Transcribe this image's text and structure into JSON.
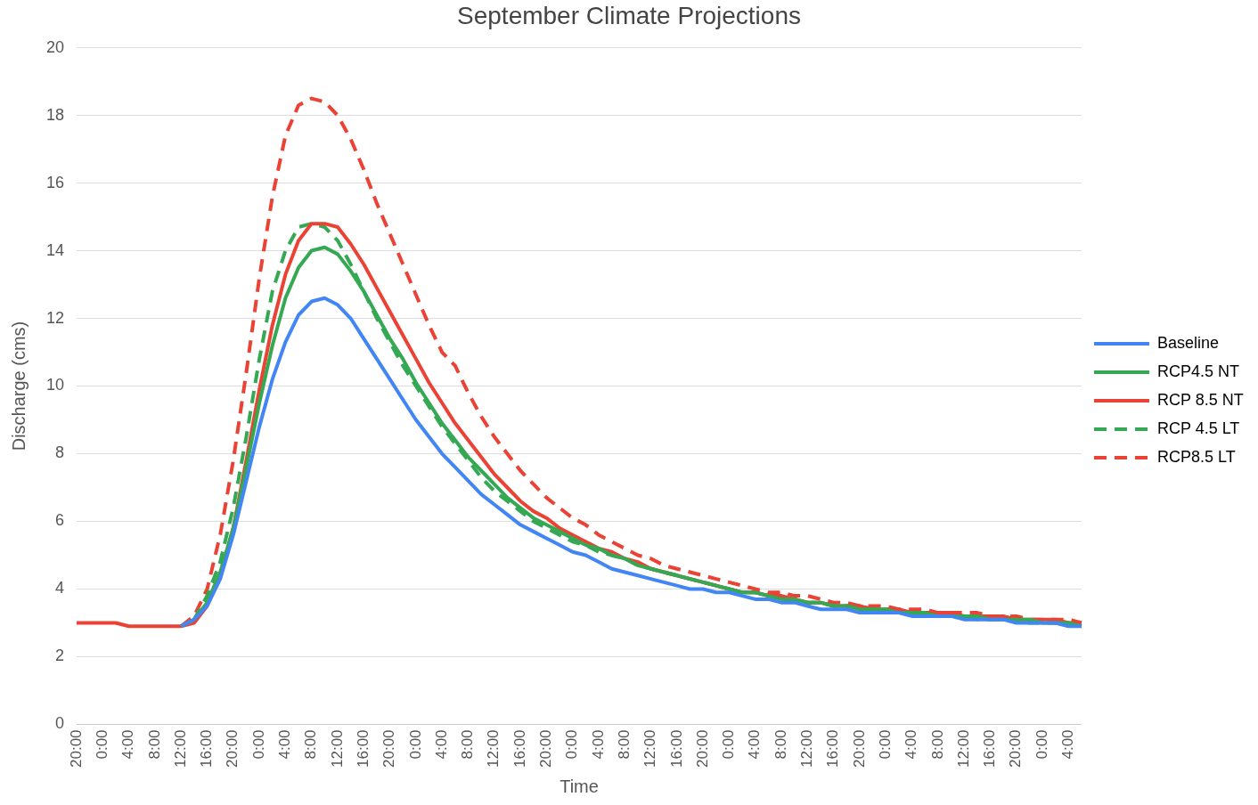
{
  "chart_data": {
    "type": "line",
    "title": "September Climate Projections",
    "xlabel": "Time",
    "ylabel": "Discharge (cms)",
    "categories": [
      "20:00",
      null,
      "0:00",
      null,
      "4:00",
      null,
      "8:00",
      null,
      "12:00",
      null,
      "16:00",
      null,
      "20:00",
      null,
      "0:00",
      null,
      "4:00",
      null,
      "8:00",
      null,
      "12:00",
      null,
      "16:00",
      null,
      "20:00",
      null,
      "0:00",
      null,
      "4:00",
      null,
      "8:00",
      null,
      "12:00",
      null,
      "16:00",
      null,
      "20:00",
      null,
      "0:00",
      null,
      "4:00",
      null,
      "8:00",
      null,
      "12:00",
      null,
      "16:00",
      null,
      "20:00",
      null,
      "0:00",
      null,
      "4:00",
      null,
      "8:00",
      null,
      "12:00",
      null,
      "16:00",
      null,
      "20:00",
      null,
      "0:00",
      null,
      "4:00",
      null,
      "8:00",
      null,
      "12:00",
      null,
      "16:00",
      null,
      "20:00",
      null,
      "0:00",
      null,
      "4:00",
      null
    ],
    "series": [
      {
        "name": "Baseline",
        "color": "#4285f4",
        "line_style": "solid",
        "values": [
          null,
          null,
          null,
          null,
          null,
          null,
          null,
          null,
          2.9,
          3.1,
          3.5,
          4.3,
          5.6,
          7.2,
          8.8,
          10.2,
          11.3,
          12.1,
          12.5,
          12.6,
          12.4,
          12.0,
          11.4,
          10.8,
          10.2,
          9.6,
          9.0,
          8.5,
          8.0,
          7.6,
          7.2,
          6.8,
          6.5,
          6.2,
          5.9,
          5.7,
          5.5,
          5.3,
          5.1,
          5.0,
          4.8,
          4.6,
          4.5,
          4.4,
          4.3,
          4.2,
          4.1,
          4.0,
          4.0,
          3.9,
          3.9,
          3.8,
          3.7,
          3.7,
          3.6,
          3.6,
          3.5,
          3.4,
          3.4,
          3.4,
          3.3,
          3.3,
          3.3,
          3.3,
          3.2,
          3.2,
          3.2,
          3.2,
          3.1,
          3.1,
          3.1,
          3.1,
          3.0,
          3.0,
          3.0,
          3.0,
          2.9,
          2.9
        ]
      },
      {
        "name": "RCP4.5 NT",
        "color": "#34a853",
        "line_style": "solid",
        "values": [
          null,
          null,
          null,
          null,
          null,
          null,
          null,
          null,
          2.9,
          3.1,
          3.6,
          4.5,
          5.8,
          7.6,
          9.5,
          11.2,
          12.6,
          13.5,
          14.0,
          14.1,
          13.9,
          13.4,
          12.8,
          12.1,
          11.4,
          10.8,
          10.1,
          9.5,
          8.9,
          8.4,
          7.9,
          7.5,
          7.1,
          6.7,
          6.4,
          6.1,
          5.9,
          5.7,
          5.5,
          5.3,
          5.2,
          5.0,
          4.9,
          4.7,
          4.6,
          4.5,
          4.4,
          4.3,
          4.2,
          4.1,
          4.0,
          3.9,
          3.9,
          3.8,
          3.7,
          3.7,
          3.6,
          3.6,
          3.5,
          3.5,
          3.4,
          3.4,
          3.4,
          3.3,
          3.3,
          3.3,
          3.2,
          3.2,
          3.2,
          3.2,
          3.1,
          3.1,
          3.1,
          3.1,
          3.0,
          3.0,
          3.0,
          2.9
        ]
      },
      {
        "name": "RCP 8.5 NT",
        "color": "#ea4335",
        "line_style": "solid",
        "values": [
          3.0,
          3.0,
          3.0,
          3.0,
          2.9,
          2.9,
          2.9,
          2.9,
          2.9,
          3.0,
          3.5,
          4.4,
          5.8,
          7.8,
          9.9,
          11.8,
          13.3,
          14.3,
          14.8,
          14.8,
          14.7,
          14.2,
          13.6,
          12.9,
          12.2,
          11.5,
          10.8,
          10.1,
          9.5,
          8.9,
          8.4,
          7.9,
          7.4,
          7.0,
          6.6,
          6.3,
          6.1,
          5.8,
          5.6,
          5.4,
          5.2,
          5.1,
          4.9,
          4.8,
          4.6,
          4.5,
          4.4,
          4.3,
          4.2,
          4.1,
          4.0,
          3.9,
          3.9,
          3.8,
          3.8,
          3.7,
          3.6,
          3.6,
          3.5,
          3.5,
          3.5,
          3.4,
          3.4,
          3.4,
          3.3,
          3.3,
          3.3,
          3.3,
          3.2,
          3.2,
          3.2,
          3.2,
          3.1,
          3.1,
          3.1,
          3.1,
          3.0,
          3.0
        ]
      },
      {
        "name": "RCP 4.5 LT",
        "color": "#34a853",
        "line_style": "dashed",
        "values": [
          null,
          null,
          null,
          null,
          null,
          null,
          null,
          null,
          null,
          3.1,
          3.8,
          4.8,
          6.4,
          8.5,
          10.8,
          12.8,
          14.0,
          14.7,
          14.8,
          14.7,
          14.3,
          13.6,
          12.8,
          12.0,
          11.3,
          10.6,
          10.0,
          9.4,
          8.8,
          8.3,
          7.8,
          7.3,
          6.9,
          6.6,
          6.3,
          6.0,
          5.8,
          5.6,
          5.4,
          5.3,
          5.1,
          5.0,
          4.9,
          4.7,
          4.6,
          4.5,
          4.4,
          4.3,
          4.2,
          4.1,
          4.0,
          3.9,
          3.9,
          3.8,
          3.7,
          3.7,
          3.6,
          3.6,
          3.5,
          3.5,
          3.5,
          3.4,
          3.4,
          3.3,
          3.3,
          3.3,
          3.2,
          3.2,
          3.2,
          3.1,
          3.1,
          3.1,
          3.1,
          3.0,
          3.0,
          3.0,
          3.0,
          2.9
        ]
      },
      {
        "name": "RCP8.5 LT",
        "color": "#ea4335",
        "line_style": "dashed",
        "values": [
          null,
          null,
          null,
          null,
          null,
          null,
          null,
          null,
          2.9,
          3.2,
          4.0,
          5.6,
          7.8,
          10.4,
          13.2,
          15.6,
          17.4,
          18.3,
          18.5,
          18.4,
          18.0,
          17.3,
          16.4,
          15.4,
          14.5,
          13.6,
          12.7,
          11.8,
          11.0,
          10.6,
          9.8,
          9.1,
          8.5,
          8.0,
          7.5,
          7.1,
          6.7,
          6.4,
          6.1,
          5.9,
          5.6,
          5.4,
          5.2,
          5.0,
          4.9,
          4.7,
          4.6,
          4.5,
          4.4,
          4.3,
          4.2,
          4.1,
          4.0,
          3.9,
          3.9,
          3.8,
          3.8,
          3.7,
          3.6,
          3.6,
          3.5,
          3.5,
          3.5,
          3.4,
          3.4,
          3.4,
          3.3,
          3.3,
          3.3,
          3.3,
          3.2,
          3.2,
          3.2,
          3.1,
          3.1,
          3.1,
          3.1,
          3.0
        ]
      }
    ],
    "ylim": [
      0,
      20
    ],
    "yticks": [
      0,
      2,
      4,
      6,
      8,
      10,
      12,
      14,
      16,
      18,
      20
    ],
    "grid": "y",
    "legend": "right"
  }
}
